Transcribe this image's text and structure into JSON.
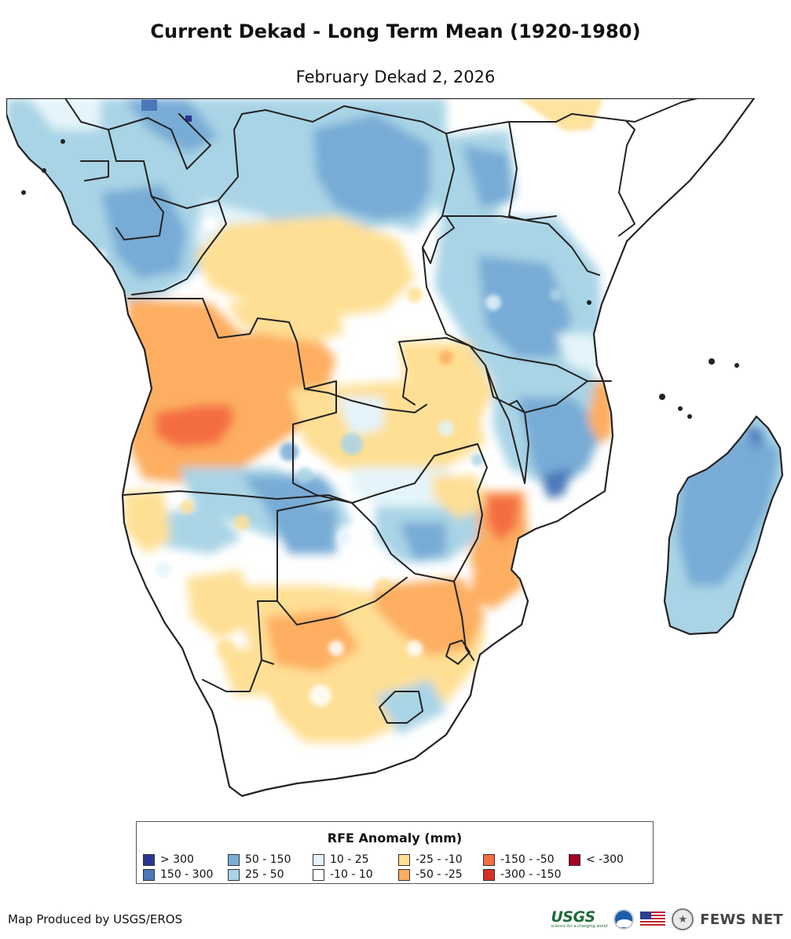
{
  "header": {
    "title": "Current Dekad - Long Term Mean (1920-1980)",
    "subtitle": "February Dekad 2, 2026"
  },
  "legend": {
    "title": "RFE Anomaly (mm)",
    "items": [
      {
        "label": "> 300",
        "color": "#2b3593"
      },
      {
        "label": "150 - 300",
        "color": "#4a78b8"
      },
      {
        "label": "50 - 150",
        "color": "#78acd6"
      },
      {
        "label": "25 - 50",
        "color": "#a9d4e6"
      },
      {
        "label": "10 - 25",
        "color": "#e4f4fa"
      },
      {
        "label": "-10 - 10",
        "color": "#ffffff"
      },
      {
        "label": "-25 - -10",
        "color": "#fedf94"
      },
      {
        "label": "-50 - -25",
        "color": "#fdae61"
      },
      {
        "label": "-150 - -50",
        "color": "#f46d43"
      },
      {
        "label": "-300 - -150",
        "color": "#d73027"
      },
      {
        "label": "< -300",
        "color": "#a50026"
      }
    ]
  },
  "footer": {
    "credit": "Map Produced by USGS/EROS",
    "logos": {
      "usgs": "USGS",
      "usgs_tagline": "science for a changing world",
      "fews": "FEWS NET"
    }
  }
}
